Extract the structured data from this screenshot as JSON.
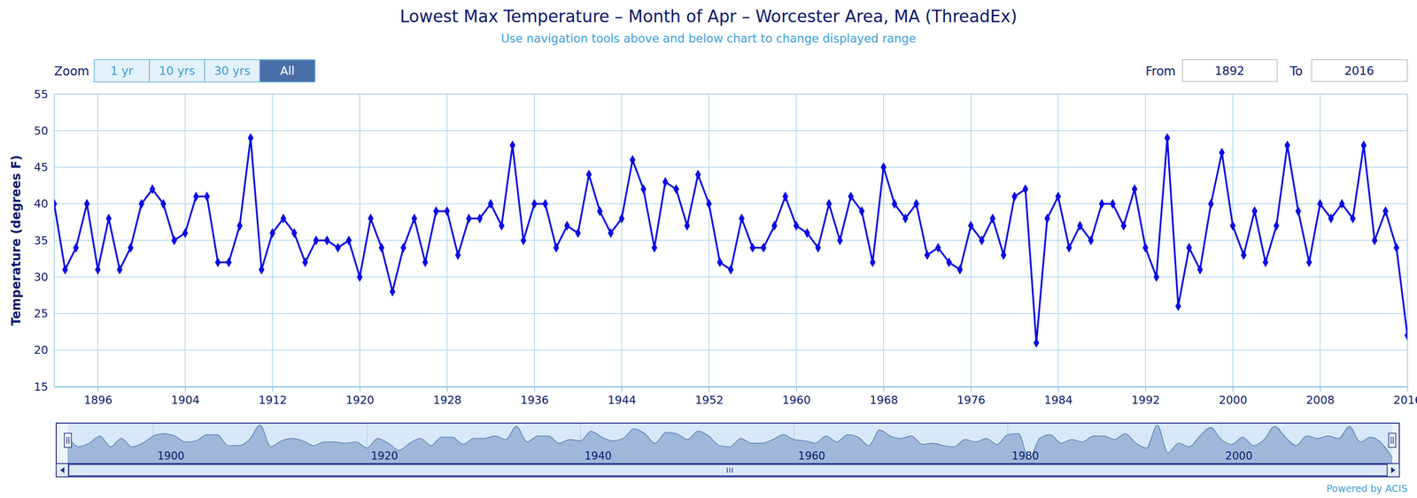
{
  "chart_data": {
    "type": "line",
    "title": "Lowest Max Temperature – Month of Apr – Worcester Area, MA (ThreadEx)",
    "subtitle": "Use navigation tools above and below chart to change displayed range",
    "y_label": "Temperature (degrees F)",
    "x": [
      1892,
      1893,
      1894,
      1895,
      1896,
      1897,
      1898,
      1899,
      1900,
      1901,
      1902,
      1903,
      1904,
      1905,
      1906,
      1907,
      1908,
      1909,
      1910,
      1911,
      1912,
      1913,
      1914,
      1915,
      1916,
      1917,
      1918,
      1919,
      1920,
      1921,
      1922,
      1923,
      1924,
      1925,
      1926,
      1927,
      1928,
      1929,
      1930,
      1931,
      1932,
      1933,
      1934,
      1935,
      1936,
      1937,
      1938,
      1939,
      1940,
      1941,
      1942,
      1943,
      1944,
      1945,
      1946,
      1947,
      1948,
      1949,
      1950,
      1951,
      1952,
      1953,
      1954,
      1955,
      1956,
      1957,
      1958,
      1959,
      1960,
      1961,
      1962,
      1963,
      1964,
      1965,
      1966,
      1967,
      1968,
      1969,
      1970,
      1971,
      1972,
      1973,
      1974,
      1975,
      1976,
      1977,
      1978,
      1979,
      1980,
      1981,
      1982,
      1983,
      1984,
      1985,
      1986,
      1987,
      1988,
      1989,
      1990,
      1991,
      1992,
      1993,
      1994,
      1995,
      1996,
      1997,
      1998,
      1999,
      2000,
      2001,
      2002,
      2003,
      2004,
      2005,
      2006,
      2007,
      2008,
      2009,
      2010,
      2011,
      2012,
      2013,
      2014,
      2015,
      2016
    ],
    "values": [
      40,
      31,
      34,
      40,
      31,
      38,
      31,
      34,
      40,
      42,
      40,
      35,
      36,
      41,
      41,
      32,
      32,
      37,
      49,
      31,
      36,
      38,
      36,
      32,
      35,
      35,
      34,
      35,
      30,
      38,
      34,
      28,
      34,
      38,
      32,
      39,
      39,
      33,
      38,
      38,
      40,
      37,
      48,
      35,
      40,
      40,
      34,
      37,
      36,
      44,
      39,
      36,
      38,
      46,
      42,
      34,
      43,
      42,
      37,
      44,
      40,
      32,
      31,
      38,
      34,
      34,
      37,
      41,
      37,
      36,
      34,
      40,
      35,
      41,
      39,
      32,
      45,
      40,
      38,
      40,
      33,
      34,
      32,
      31,
      37,
      35,
      38,
      33,
      41,
      42,
      21,
      38,
      41,
      34,
      37,
      35,
      40,
      40,
      37,
      42,
      34,
      30,
      49,
      26,
      34,
      31,
      40,
      47,
      37,
      33,
      39,
      32,
      37,
      48,
      39,
      32,
      40,
      38,
      40,
      38,
      48,
      35,
      39,
      34,
      22
    ],
    "color": "#0a0ae6",
    "marker": "diamond",
    "xlim": [
      1892,
      2016
    ],
    "xticks": [
      1896,
      1904,
      1912,
      1920,
      1928,
      1936,
      1944,
      1952,
      1960,
      1968,
      1976,
      1984,
      1992,
      2000,
      2008,
      2016
    ],
    "ylim": [
      15,
      55
    ],
    "yticks": [
      15,
      20,
      25,
      30,
      35,
      40,
      45,
      50,
      55
    ],
    "grid": true
  },
  "controls": {
    "zoom_label": "Zoom",
    "zoom_buttons": [
      "1 yr",
      "10 yrs",
      "30 yrs",
      "All"
    ],
    "selected": "All",
    "from_label": "From",
    "from": "1892",
    "to_label": "To",
    "to": "2016"
  },
  "navigator": {
    "xticks": [
      1900,
      1920,
      1940,
      1960,
      1980,
      2000
    ],
    "ylim": [
      17,
      49
    ]
  },
  "credit": "Powered by ACIS"
}
